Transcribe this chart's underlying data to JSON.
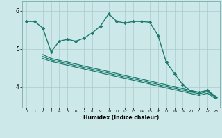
{
  "title": "",
  "xlabel": "Humidex (Indice chaleur)",
  "bg_color": "#cce8e8",
  "grid_color": "#aacccc",
  "line_color": "#1a7a6e",
  "xlim": [
    -0.5,
    23.5
  ],
  "ylim": [
    3.45,
    6.25
  ],
  "yticks": [
    4,
    5,
    6
  ],
  "xticks": [
    0,
    1,
    2,
    3,
    4,
    5,
    6,
    7,
    8,
    9,
    10,
    11,
    12,
    13,
    14,
    15,
    16,
    17,
    18,
    19,
    20,
    21,
    22,
    23
  ],
  "line1_x": [
    0,
    1,
    2,
    3,
    4,
    5,
    6,
    7,
    8,
    9,
    10,
    11,
    12,
    13,
    14,
    15,
    16,
    17,
    18,
    19,
    20,
    21,
    22,
    23
  ],
  "line1_y": [
    5.72,
    5.72,
    5.55,
    4.92,
    5.2,
    5.25,
    5.2,
    5.28,
    5.42,
    5.6,
    5.92,
    5.72,
    5.68,
    5.72,
    5.72,
    5.7,
    5.35,
    4.65,
    4.35,
    4.05,
    3.88,
    3.85,
    3.9,
    3.72
  ],
  "line2_x": [
    2,
    3,
    4,
    5,
    6,
    7,
    8,
    9,
    10,
    11,
    12,
    13,
    14,
    15,
    16,
    17,
    18,
    19,
    20,
    21,
    22,
    23
  ],
  "line2_y": [
    4.85,
    4.75,
    4.7,
    4.65,
    4.6,
    4.55,
    4.5,
    4.45,
    4.4,
    4.35,
    4.3,
    4.25,
    4.2,
    4.15,
    4.1,
    4.05,
    4.0,
    3.95,
    3.9,
    3.85,
    3.9,
    3.75
  ],
  "line3_x": [
    2,
    3,
    4,
    5,
    6,
    7,
    8,
    9,
    10,
    11,
    12,
    13,
    14,
    15,
    16,
    17,
    18,
    19,
    20,
    21,
    22,
    23
  ],
  "line3_y": [
    4.8,
    4.71,
    4.66,
    4.61,
    4.56,
    4.51,
    4.46,
    4.41,
    4.36,
    4.31,
    4.26,
    4.21,
    4.16,
    4.11,
    4.06,
    4.01,
    3.96,
    3.91,
    3.86,
    3.81,
    3.87,
    3.72
  ],
  "line4_x": [
    2,
    3,
    4,
    5,
    6,
    7,
    8,
    9,
    10,
    11,
    12,
    13,
    14,
    15,
    16,
    17,
    18,
    19,
    20,
    21,
    22,
    23
  ],
  "line4_y": [
    4.75,
    4.67,
    4.62,
    4.57,
    4.52,
    4.47,
    4.42,
    4.37,
    4.32,
    4.27,
    4.22,
    4.17,
    4.12,
    4.07,
    4.02,
    3.97,
    3.92,
    3.87,
    3.82,
    3.77,
    3.83,
    3.68
  ]
}
